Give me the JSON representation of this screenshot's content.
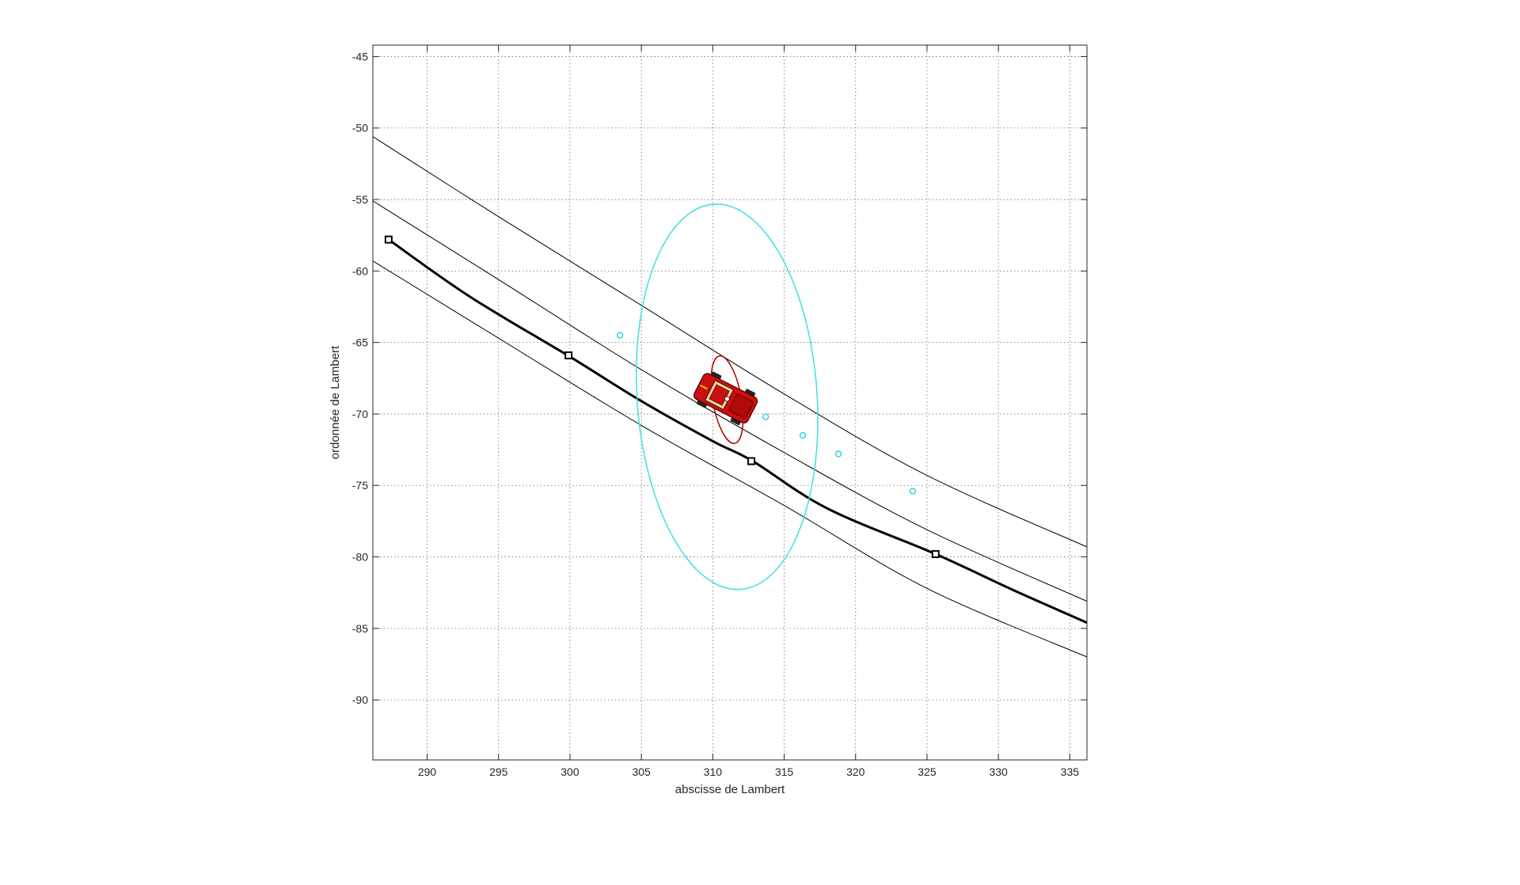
{
  "chart_data": {
    "type": "line",
    "title": "",
    "xlabel": "abscisse de Lambert",
    "ylabel": "ordonnée de Lambert",
    "xlim": [
      286.2,
      336.2
    ],
    "ylim": [
      -94.2,
      -44.2
    ],
    "grid": true,
    "legend": "none",
    "x_ticks": [
      290,
      295,
      300,
      305,
      310,
      315,
      320,
      325,
      330,
      335
    ],
    "y_ticks": [
      -45,
      -50,
      -55,
      -60,
      -65,
      -70,
      -75,
      -80,
      -85,
      -90
    ],
    "x_tick_labels": [
      "290",
      "295",
      "300",
      "305",
      "310",
      "315",
      "320",
      "325",
      "330",
      "335"
    ],
    "y_tick_labels": [
      "-45",
      "-50",
      "-55",
      "-60",
      "-65",
      "-70",
      "-75",
      "-80",
      "-85",
      "-90"
    ],
    "series": [
      {
        "kind": "road-center",
        "color": "#000000",
        "x": [
          287.3,
          293,
          300,
          305,
          310,
          312.8,
          318,
          325.6,
          331,
          336.2
        ],
        "y": [
          -57.8,
          -61.8,
          -66.0,
          -69.1,
          -71.9,
          -73.3,
          -76.6,
          -79.8,
          -82.3,
          -84.6
        ]
      },
      {
        "kind": "road-edge",
        "color": "#000000",
        "x": [
          286.2,
          295,
          305,
          315,
          325,
          336.2
        ],
        "y": [
          -50.6,
          -56.2,
          -62.4,
          -68.6,
          -74.3,
          -79.3
        ]
      },
      {
        "kind": "road-edge",
        "color": "#000000",
        "x": [
          286.2,
          295,
          305,
          315,
          325,
          336.2
        ],
        "y": [
          -55.1,
          -60.6,
          -66.9,
          -72.7,
          -78.1,
          -83.1
        ]
      },
      {
        "kind": "road-edge",
        "color": "#000000",
        "x": [
          286.2,
          295,
          305,
          315,
          325,
          336.2
        ],
        "y": [
          -59.3,
          -64.7,
          -70.8,
          -76.4,
          -82.2,
          -87.0
        ]
      }
    ],
    "waypoints": {
      "color": "#000000",
      "x": [
        287.3,
        299.9,
        312.7,
        325.6
      ],
      "y": [
        -57.8,
        -65.9,
        -73.3,
        -79.8
      ]
    },
    "observations": {
      "color": "#00d0d8",
      "x": [
        303.5,
        313.7,
        316.3,
        318.8,
        324.0
      ],
      "y": [
        -64.5,
        -70.2,
        -71.5,
        -72.8,
        -75.4
      ]
    },
    "ellipses": [
      {
        "name": "large-uncertainty",
        "color": "#40e0e0",
        "cx": 311.0,
        "cy": -68.8,
        "rx": 6.3,
        "ry": 13.5,
        "angle_deg": -4
      },
      {
        "name": "vehicle-uncertainty",
        "color": "#b00000",
        "cx": 311.0,
        "cy": -69.0,
        "rx": 1.0,
        "ry": 3.1,
        "angle_deg": -10
      }
    ],
    "vehicle": {
      "icon": "car-icon",
      "color": "#cc1010",
      "x": 310.9,
      "y": -68.9,
      "heading_deg": -27
    }
  }
}
